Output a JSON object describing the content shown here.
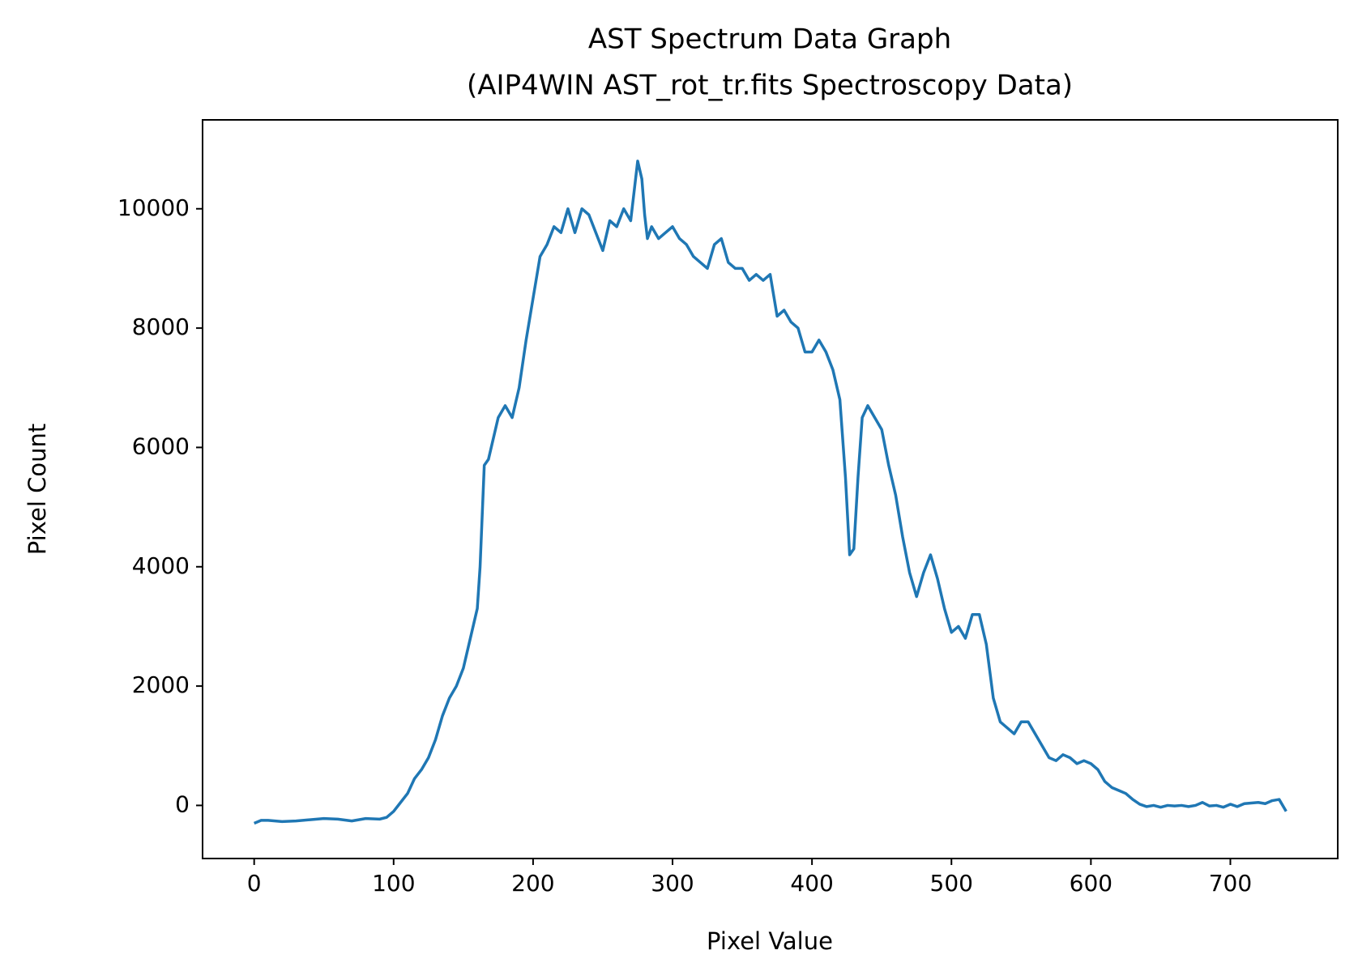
{
  "chart_data": {
    "type": "line",
    "title": "AST Spectrum Data Graph",
    "subtitle": "(AIP4WIN AST_rot_tr.fits Spectroscopy Data)",
    "x_label": "Pixel Value",
    "y_label": "Pixel Count",
    "x": [
      0,
      5,
      10,
      20,
      30,
      40,
      50,
      60,
      70,
      80,
      90,
      95,
      100,
      105,
      110,
      115,
      120,
      125,
      130,
      135,
      140,
      145,
      150,
      155,
      158,
      160,
      162,
      165,
      168,
      170,
      175,
      180,
      185,
      190,
      195,
      200,
      205,
      210,
      215,
      220,
      225,
      230,
      235,
      240,
      245,
      250,
      255,
      260,
      265,
      270,
      272,
      275,
      278,
      280,
      282,
      285,
      290,
      295,
      300,
      305,
      310,
      315,
      320,
      325,
      330,
      335,
      340,
      345,
      350,
      355,
      360,
      365,
      370,
      375,
      380,
      385,
      390,
      395,
      400,
      405,
      410,
      415,
      420,
      424,
      427,
      430,
      433,
      436,
      440,
      445,
      450,
      455,
      460,
      465,
      470,
      475,
      480,
      485,
      490,
      495,
      500,
      505,
      510,
      515,
      520,
      525,
      530,
      535,
      540,
      545,
      550,
      555,
      560,
      565,
      570,
      575,
      580,
      585,
      590,
      595,
      600,
      605,
      610,
      615,
      620,
      625,
      630,
      635,
      640,
      645,
      650,
      655,
      660,
      665,
      670,
      675,
      680,
      685,
      690,
      695,
      700,
      705,
      710,
      715,
      720,
      725,
      730,
      735,
      740
    ],
    "series": [
      {
        "color": "#1f77b4",
        "values": [
          -300,
          -250,
          -250,
          -270,
          -260,
          -240,
          -220,
          -230,
          -260,
          -220,
          -230,
          -200,
          -100,
          50,
          200,
          450,
          600,
          800,
          1100,
          1500,
          1800,
          2000,
          2300,
          2800,
          3100,
          3300,
          4000,
          5700,
          5800,
          6000,
          6500,
          6700,
          6500,
          7000,
          7800,
          8500,
          9200,
          9400,
          9700,
          9600,
          10000,
          9600,
          10000,
          9900,
          9600,
          9300,
          9800,
          9700,
          10000,
          9800,
          10200,
          10800,
          10500,
          9900,
          9500,
          9700,
          9500,
          9600,
          9700,
          9500,
          9400,
          9200,
          9100,
          9000,
          9400,
          9500,
          9100,
          9000,
          9000,
          8800,
          8900,
          8800,
          8900,
          8200,
          8300,
          8100,
          8000,
          7600,
          7600,
          7800,
          7600,
          7300,
          6800,
          5500,
          4200,
          4300,
          5500,
          6500,
          6700,
          6500,
          6300,
          5700,
          5200,
          4500,
          3900,
          3500,
          3900,
          4200,
          3800,
          3300,
          2900,
          3000,
          2800,
          3200,
          3200,
          2700,
          1800,
          1400,
          1300,
          1200,
          1400,
          1400,
          1200,
          1000,
          800,
          750,
          850,
          800,
          700,
          750,
          700,
          600,
          400,
          300,
          250,
          200,
          100,
          20,
          -20,
          0,
          -30,
          0,
          -10,
          0,
          -20,
          0,
          50,
          -10,
          0,
          -30,
          20,
          -20,
          30,
          40,
          50,
          30,
          80,
          100,
          -100
        ]
      }
    ],
    "xlim": [
      -37,
      777
    ],
    "ylim": [
      -890,
      11490
    ],
    "xticks": [
      0,
      100,
      200,
      300,
      400,
      500,
      600,
      700
    ],
    "yticks": [
      0,
      2000,
      4000,
      6000,
      8000,
      10000
    ]
  }
}
